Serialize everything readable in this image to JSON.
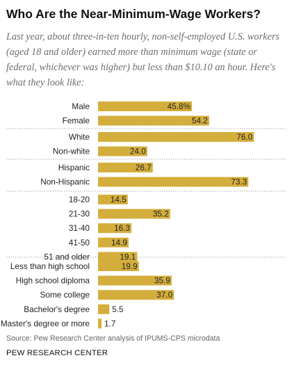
{
  "title": "Who Are the Near-Minimum-Wage Workers?",
  "subtitle": "Last year, about three-in-ten hourly, non-self-employed U.S. workers (aged 18 and older) earned more than minimum wage (state or federal, whichever was higher) but less than $10.10 an hour. Here's what they look like:",
  "source": "Source: Pew Research Center analysis of IPUMS-CPS microdata",
  "brand": "PEW RESEARCH CENTER",
  "colors": {
    "bar": "#d4ae3c",
    "divider": "#9a9a9a"
  },
  "chart_data": {
    "type": "bar",
    "orientation": "horizontal",
    "xlim": [
      0,
      76
    ],
    "groups": [
      {
        "categories": [
          "Male",
          "Female"
        ],
        "values": [
          45.8,
          54.2
        ],
        "labels": [
          "45.8%",
          "54.2"
        ]
      },
      {
        "categories": [
          "White",
          "Non-white"
        ],
        "values": [
          76.0,
          24.0
        ],
        "labels": [
          "76.0",
          "24.0"
        ]
      },
      {
        "categories": [
          "Hispanic",
          "Non-Hispanic"
        ],
        "values": [
          26.7,
          73.3
        ],
        "labels": [
          "26.7",
          "73.3"
        ]
      },
      {
        "categories": [
          "18-20",
          "21-30",
          "31-40",
          "41-50",
          "51 and older"
        ],
        "values": [
          14.5,
          35.2,
          16.3,
          14.9,
          19.1
        ],
        "labels": [
          "14.5",
          "35.2",
          "16.3",
          "14.9",
          "19.1"
        ]
      },
      {
        "categories": [
          "Less than high school",
          "High school diploma",
          "Some college",
          "Bachelor's degree",
          "Master's degree or more"
        ],
        "values": [
          19.9,
          35.9,
          37.0,
          5.5,
          1.7
        ],
        "labels": [
          "19.9",
          "35.9",
          "37.0",
          "5.5",
          "1.7"
        ]
      }
    ]
  }
}
